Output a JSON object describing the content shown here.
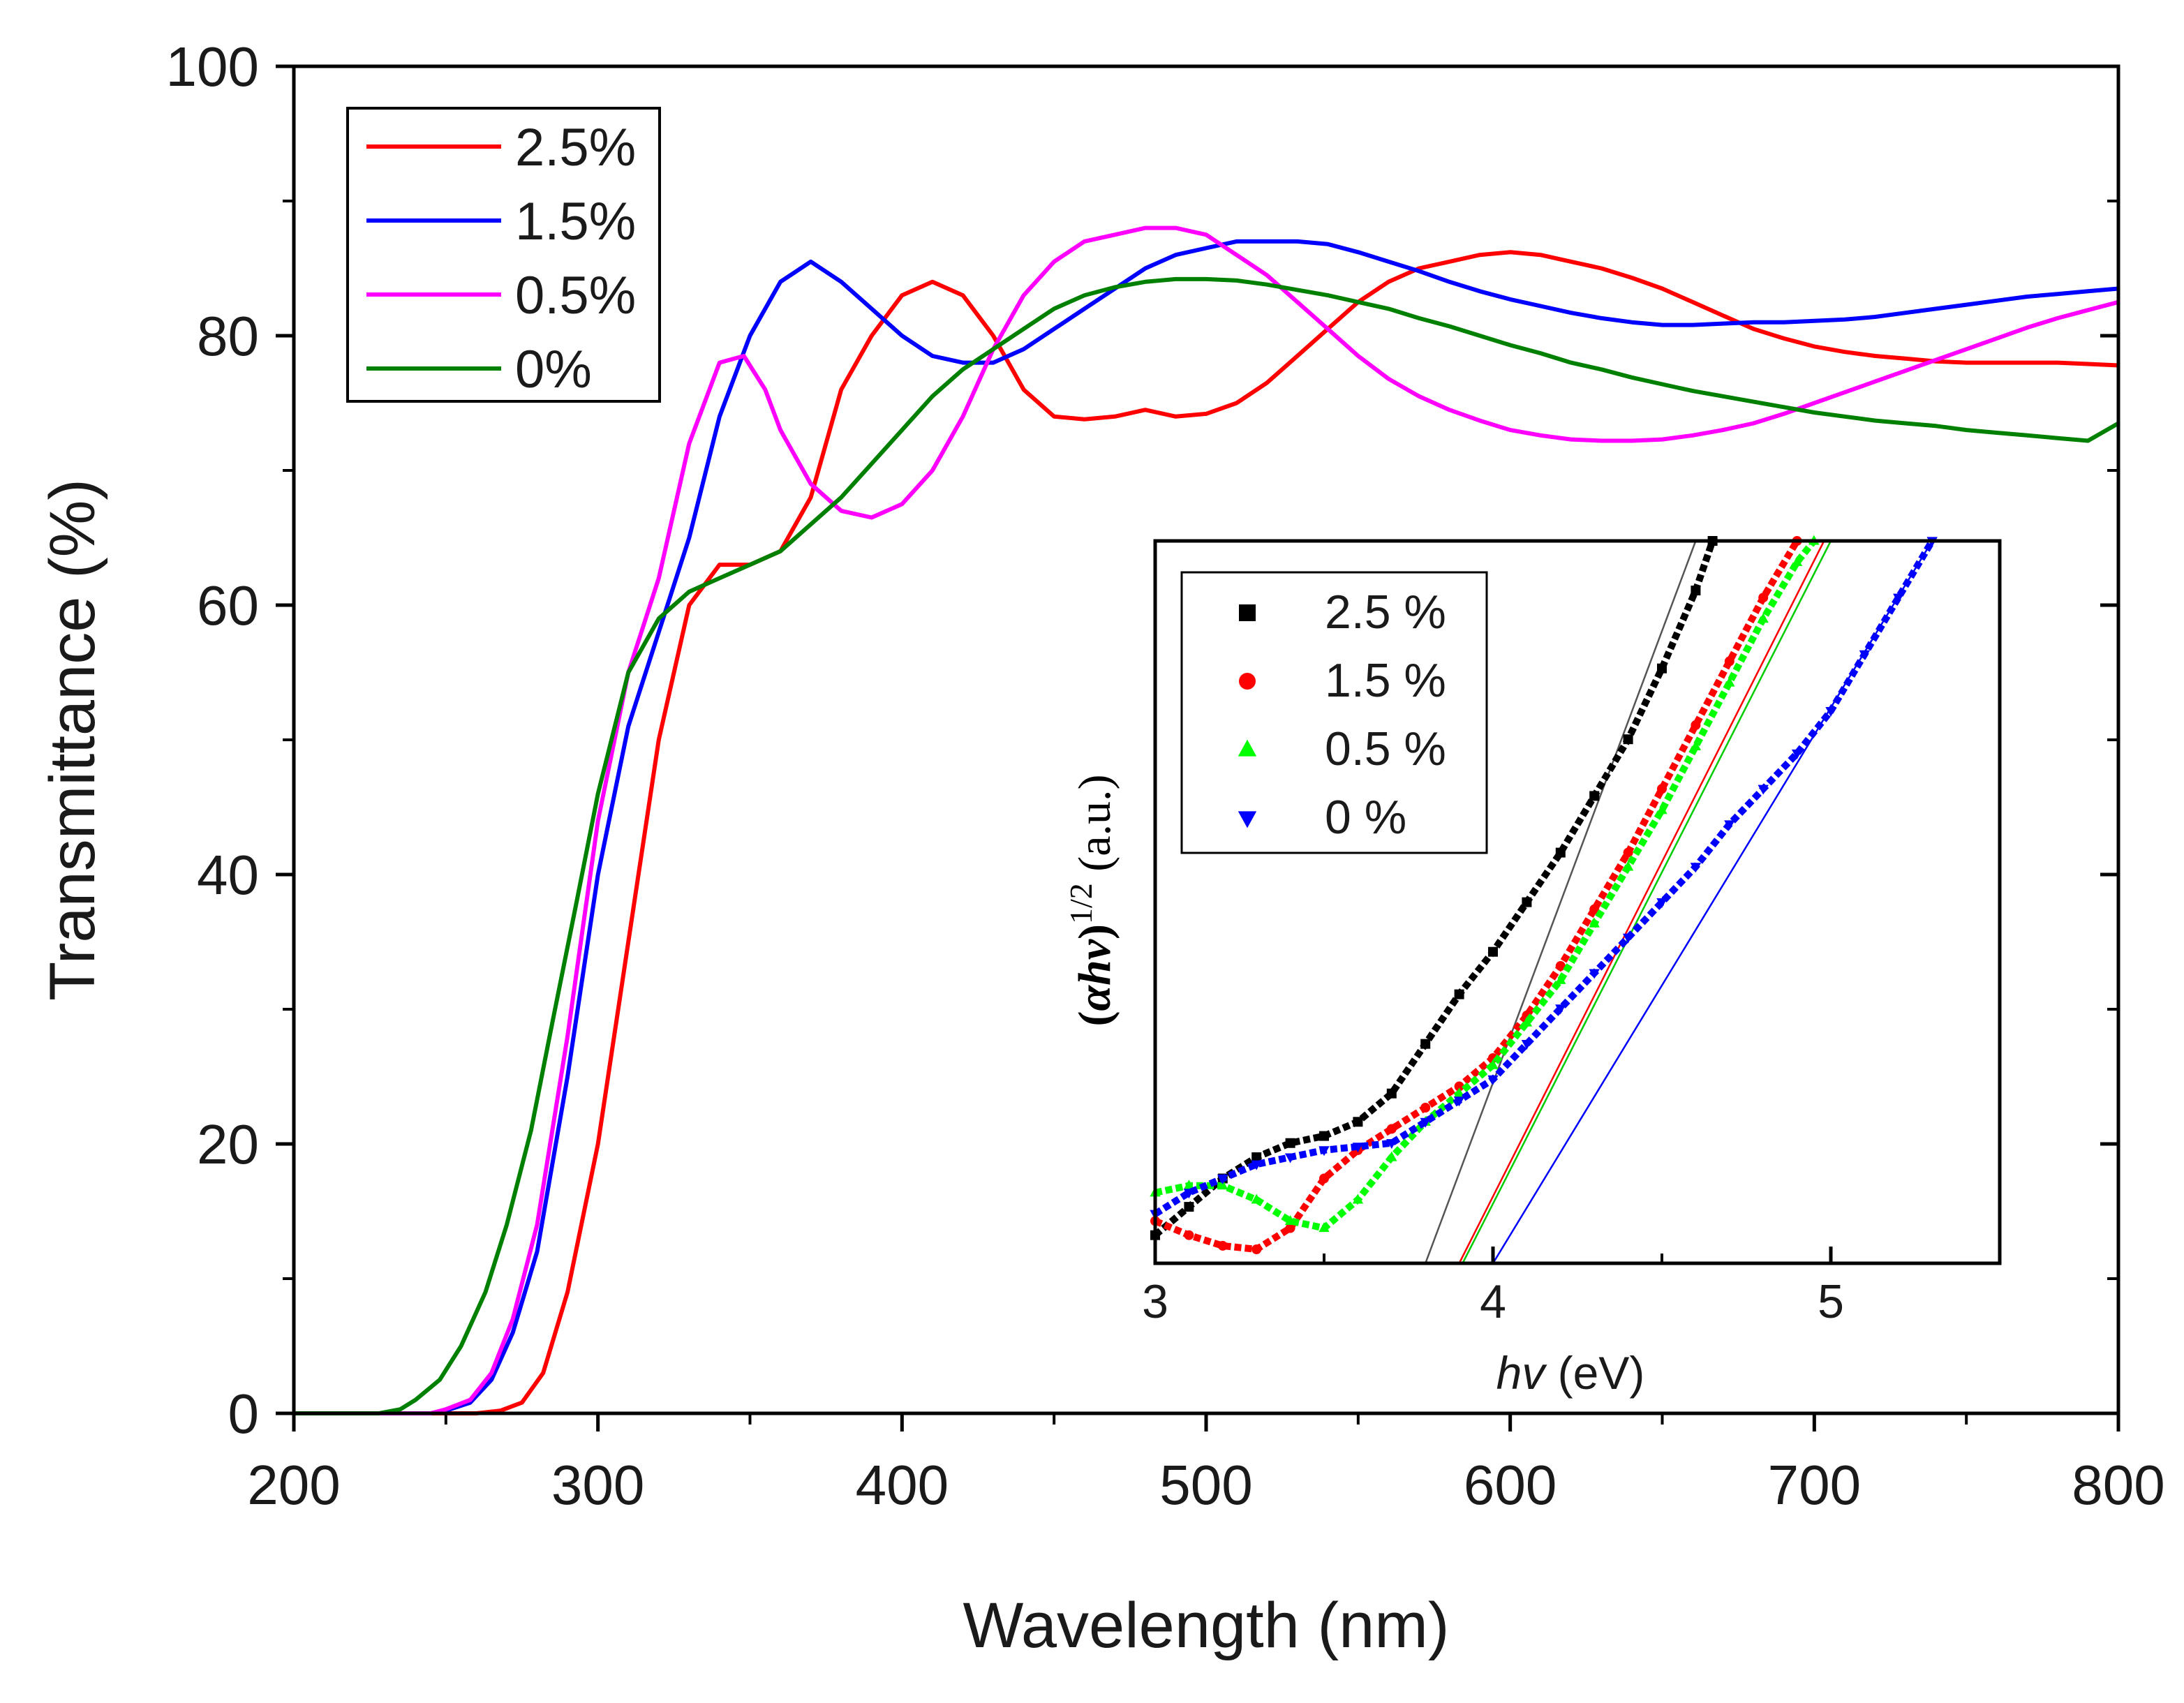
{
  "chart_data": [
    {
      "type": "line",
      "name": "main",
      "xlabel": "Wavelength (nm)",
      "ylabel": "Transmittance (%)",
      "xlim": [
        200,
        800
      ],
      "ylim": [
        0,
        100
      ],
      "xticks": [
        200,
        300,
        400,
        500,
        600,
        700,
        800
      ],
      "xtick_labels": [
        "200",
        "300",
        "400",
        "500",
        "600",
        "700",
        "800"
      ],
      "yticks": [
        0,
        20,
        40,
        60,
        80,
        100
      ],
      "ytick_labels": [
        "0",
        "20",
        "40",
        "60",
        "80",
        "100"
      ],
      "legend_position": "top-left",
      "series": [
        {
          "name": "2.5%",
          "color": "#ff0000",
          "x": [
            200,
            260,
            268,
            275,
            282,
            290,
            300,
            310,
            320,
            330,
            340,
            350,
            360,
            370,
            380,
            390,
            400,
            410,
            420,
            430,
            440,
            450,
            460,
            470,
            480,
            490,
            500,
            510,
            520,
            530,
            540,
            550,
            560,
            570,
            580,
            590,
            600,
            610,
            620,
            630,
            640,
            650,
            660,
            670,
            680,
            690,
            700,
            710,
            720,
            730,
            740,
            750,
            760,
            770,
            780,
            790,
            800
          ],
          "y": [
            0,
            0,
            0.2,
            0.8,
            3,
            9,
            20,
            35,
            50,
            60,
            63,
            63,
            64,
            68,
            76,
            80,
            83,
            84,
            83,
            80,
            76,
            74,
            73.8,
            74,
            74.5,
            74,
            74.2,
            75,
            76.5,
            78.5,
            80.5,
            82.5,
            84,
            85,
            85.5,
            86,
            86.2,
            86,
            85.5,
            85,
            84.3,
            83.5,
            82.5,
            81.5,
            80.5,
            79.8,
            79.2,
            78.8,
            78.5,
            78.3,
            78.1,
            78,
            78,
            78,
            78,
            77.9,
            77.8
          ]
        },
        {
          "name": "1.5%",
          "color": "#0000ff",
          "x": [
            200,
            245,
            250,
            258,
            265,
            272,
            280,
            290,
            300,
            310,
            320,
            330,
            340,
            350,
            360,
            370,
            380,
            390,
            400,
            410,
            420,
            430,
            440,
            450,
            460,
            470,
            480,
            490,
            500,
            510,
            520,
            530,
            540,
            550,
            560,
            570,
            580,
            590,
            600,
            610,
            620,
            630,
            640,
            650,
            660,
            670,
            680,
            690,
            700,
            710,
            720,
            730,
            740,
            750,
            760,
            770,
            780,
            790,
            800
          ],
          "y": [
            0,
            0,
            0.2,
            0.8,
            2.5,
            6,
            12,
            25,
            40,
            51,
            58,
            65,
            74,
            80,
            84,
            85.5,
            84,
            82,
            80,
            78.5,
            78,
            78,
            79,
            80.5,
            82,
            83.5,
            85,
            86,
            86.5,
            87,
            87,
            87,
            86.8,
            86.2,
            85.5,
            84.8,
            84,
            83.3,
            82.7,
            82.2,
            81.7,
            81.3,
            81,
            80.8,
            80.8,
            80.9,
            81,
            81,
            81.1,
            81.2,
            81.4,
            81.7,
            82,
            82.3,
            82.6,
            82.9,
            83.1,
            83.3,
            83.5
          ]
        },
        {
          "name": "0.5%",
          "color": "#ff00ff",
          "x": [
            200,
            245,
            250,
            258,
            265,
            272,
            280,
            290,
            300,
            310,
            320,
            330,
            340,
            348,
            355,
            360,
            370,
            380,
            390,
            400,
            410,
            420,
            430,
            440,
            450,
            460,
            470,
            480,
            490,
            500,
            510,
            520,
            530,
            540,
            550,
            560,
            570,
            580,
            590,
            600,
            610,
            620,
            630,
            640,
            650,
            660,
            670,
            680,
            690,
            700,
            710,
            720,
            730,
            740,
            750,
            760,
            770,
            780,
            790,
            800
          ],
          "y": [
            0,
            0,
            0.3,
            1,
            3,
            7,
            14,
            28,
            44,
            55,
            62,
            72,
            78,
            78.5,
            76,
            73,
            69,
            67,
            66.5,
            67.5,
            70,
            74,
            79,
            83,
            85.5,
            87,
            87.5,
            88,
            88,
            87.5,
            86,
            84.5,
            82.5,
            80.5,
            78.5,
            76.8,
            75.5,
            74.5,
            73.7,
            73,
            72.6,
            72.3,
            72.2,
            72.2,
            72.3,
            72.6,
            73,
            73.5,
            74.2,
            75,
            75.8,
            76.6,
            77.4,
            78.2,
            79,
            79.8,
            80.6,
            81.3,
            81.9,
            82.5
          ]
        },
        {
          "name": "0%",
          "color": "#008000",
          "x": [
            200,
            228,
            235,
            240,
            248,
            255,
            263,
            270,
            278,
            285,
            293,
            300,
            310,
            320,
            330,
            340,
            350,
            360,
            370,
            380,
            390,
            400,
            410,
            420,
            430,
            440,
            450,
            460,
            470,
            480,
            490,
            500,
            510,
            520,
            530,
            540,
            550,
            560,
            570,
            580,
            590,
            600,
            610,
            620,
            630,
            640,
            650,
            660,
            670,
            680,
            690,
            700,
            710,
            720,
            730,
            740,
            750,
            760,
            770,
            780,
            790,
            800
          ],
          "y": [
            0,
            0,
            0.3,
            1,
            2.5,
            5,
            9,
            14,
            21,
            29,
            38,
            46,
            55,
            59,
            61,
            62,
            63,
            64,
            66,
            68,
            70.5,
            73,
            75.5,
            77.5,
            79,
            80.5,
            82,
            83,
            83.6,
            84,
            84.2,
            84.2,
            84.1,
            83.8,
            83.4,
            83,
            82.5,
            82,
            81.3,
            80.7,
            80,
            79.3,
            78.7,
            78,
            77.5,
            76.9,
            76.4,
            75.9,
            75.5,
            75.1,
            74.7,
            74.3,
            74,
            73.7,
            73.5,
            73.3,
            73,
            72.8,
            72.6,
            72.4,
            72.2,
            73.5
          ]
        }
      ]
    },
    {
      "type": "scatter",
      "name": "inset",
      "xlabel_italic": "hv",
      "xlabel_rest": " (eV)",
      "ylabel_open": "(",
      "ylabel_alpha": "α",
      "ylabel_hv": "hv",
      "ylabel_close": ")",
      "ylabel_sup": "1/2",
      "ylabel_unit": " (a.u.)",
      "xlim": [
        3,
        5.5
      ],
      "ylim": [
        0,
        1
      ],
      "xticks": [
        3,
        4,
        5
      ],
      "xtick_labels": [
        "3",
        "4",
        "5"
      ],
      "legend_position": "top-left",
      "series": [
        {
          "name": "2.5 %",
          "color": "#000000",
          "marker": "square",
          "x": [
            3,
            3.1,
            3.2,
            3.3,
            3.4,
            3.5,
            3.6,
            3.7,
            3.8,
            3.9,
            4,
            4.1,
            4.2,
            4.3,
            4.4,
            4.5,
            4.6,
            4.65
          ],
          "y": [
            0.02,
            0.06,
            0.1,
            0.13,
            0.15,
            0.16,
            0.18,
            0.22,
            0.29,
            0.36,
            0.42,
            0.49,
            0.56,
            0.64,
            0.72,
            0.82,
            0.93,
            1.0
          ]
        },
        {
          "name": "1.5 %",
          "color": "#ff0000",
          "marker": "circle",
          "x": [
            3,
            3.1,
            3.2,
            3.3,
            3.4,
            3.5,
            3.6,
            3.7,
            3.8,
            3.9,
            4,
            4.1,
            4.2,
            4.3,
            4.4,
            4.5,
            4.6,
            4.7,
            4.8,
            4.9
          ],
          "y": [
            0.04,
            0.02,
            0.005,
            0,
            0.03,
            0.1,
            0.14,
            0.17,
            0.2,
            0.23,
            0.27,
            0.33,
            0.4,
            0.48,
            0.56,
            0.65,
            0.74,
            0.83,
            0.92,
            1.0
          ]
        },
        {
          "name": "0.5 %",
          "color": "#00ff00",
          "marker": "triangle-up",
          "x": [
            3,
            3.1,
            3.2,
            3.3,
            3.4,
            3.5,
            3.6,
            3.7,
            3.8,
            3.9,
            4,
            4.1,
            4.2,
            4.3,
            4.4,
            4.5,
            4.6,
            4.7,
            4.8,
            4.9,
            4.95
          ],
          "y": [
            0.08,
            0.09,
            0.09,
            0.07,
            0.04,
            0.03,
            0.07,
            0.13,
            0.18,
            0.22,
            0.26,
            0.32,
            0.38,
            0.46,
            0.54,
            0.62,
            0.71,
            0.8,
            0.89,
            0.97,
            1.0
          ]
        },
        {
          "name": "0 %",
          "color": "#0000ff",
          "marker": "triangle-down",
          "x": [
            3,
            3.1,
            3.2,
            3.3,
            3.4,
            3.5,
            3.6,
            3.7,
            3.8,
            3.9,
            4,
            4.1,
            4.2,
            4.3,
            4.4,
            4.5,
            4.6,
            4.7,
            4.8,
            4.9,
            5,
            5.1,
            5.2,
            5.3
          ],
          "y": [
            0.05,
            0.08,
            0.1,
            0.12,
            0.13,
            0.14,
            0.145,
            0.15,
            0.18,
            0.21,
            0.24,
            0.29,
            0.34,
            0.39,
            0.44,
            0.49,
            0.54,
            0.6,
            0.65,
            0.7,
            0.76,
            0.84,
            0.92,
            1.0
          ]
        }
      ],
      "fit_lines": [
        {
          "color": "#555555",
          "x": [
            3.8,
            4.6
          ],
          "y": [
            0,
            1.0
          ]
        },
        {
          "color": "#ff0000",
          "x": [
            3.9,
            4.98
          ],
          "y": [
            0,
            1.0
          ]
        },
        {
          "color": "#00cc00",
          "x": [
            3.91,
            5.0
          ],
          "y": [
            0,
            1.0
          ]
        },
        {
          "color": "#0000ff",
          "x": [
            4.0,
            5.3
          ],
          "y": [
            0,
            1.0
          ]
        }
      ]
    }
  ]
}
